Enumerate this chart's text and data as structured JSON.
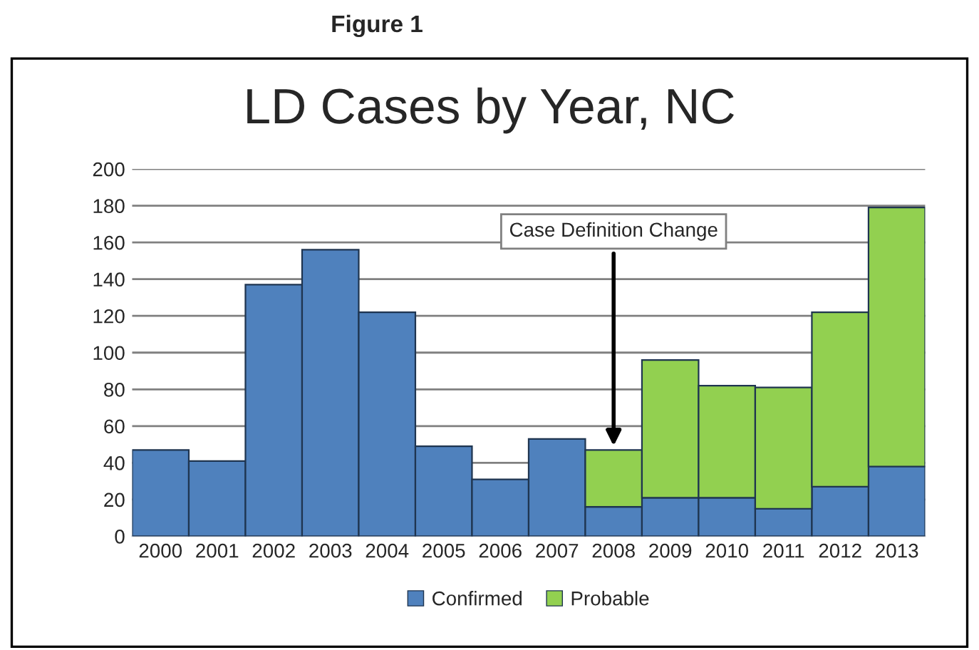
{
  "chart_data": {
    "type": "bar",
    "title": "LD Cases by Year, NC",
    "stacked": true,
    "categories": [
      "2000",
      "2001",
      "2002",
      "2003",
      "2004",
      "2005",
      "2006",
      "2007",
      "2008",
      "2009",
      "2010",
      "2011",
      "2012",
      "2013"
    ],
    "series": [
      {
        "name": "Confirmed",
        "color": "#4f81bd",
        "values": [
          47,
          41,
          137,
          156,
          122,
          49,
          31,
          53,
          16,
          21,
          21,
          15,
          27,
          38
        ]
      },
      {
        "name": "Probable",
        "color": "#92d050",
        "values": [
          null,
          null,
          null,
          null,
          null,
          null,
          null,
          null,
          31,
          75,
          61,
          66,
          95,
          141
        ]
      }
    ],
    "ylim": [
      0,
      200
    ],
    "yticks": [
      0,
      20,
      40,
      60,
      80,
      100,
      120,
      140,
      160,
      180,
      200
    ],
    "grid": "y",
    "legend": "bottom",
    "annotations": [
      "Figure 1",
      {
        "text": "Case Definition Change",
        "x": "2008",
        "y": 47
      }
    ]
  }
}
